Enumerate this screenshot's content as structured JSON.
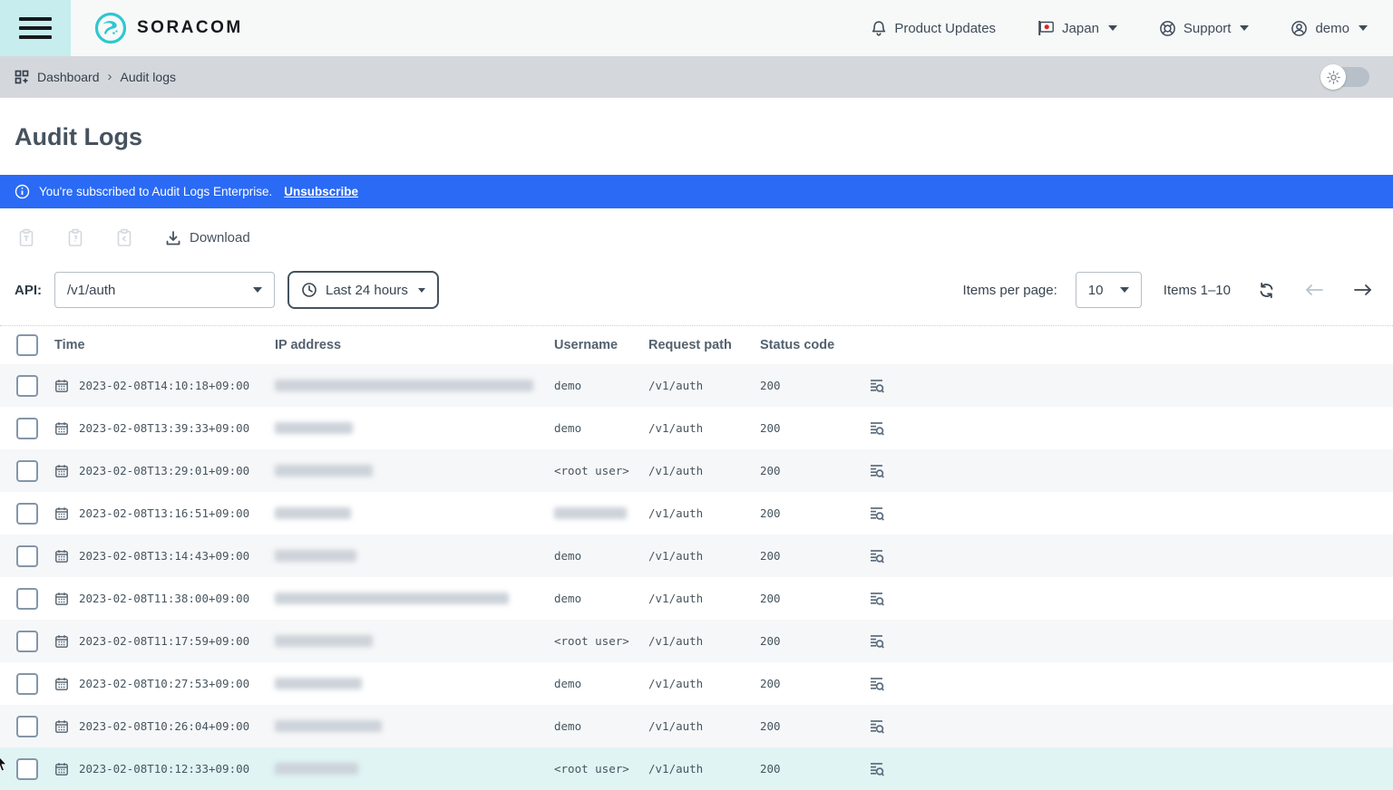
{
  "brand": {
    "name": "SORACOM",
    "accent_color": "#2fc7d0"
  },
  "topbar": {
    "product_updates": "Product Updates",
    "region": "Japan",
    "support": "Support",
    "user": "demo"
  },
  "breadcrumb": {
    "items": [
      "Dashboard",
      "Audit logs"
    ]
  },
  "page": {
    "title": "Audit Logs"
  },
  "banner": {
    "text": "You're subscribed to Audit Logs Enterprise.",
    "link": "Unsubscribe",
    "background_color": "#2a6af5"
  },
  "toolbar": {
    "download_label": "Download"
  },
  "filters": {
    "api_label": "API:",
    "api_value": "/v1/auth",
    "time_range": "Last 24 hours"
  },
  "pagination": {
    "items_per_page_label": "Items per page:",
    "per_page": "10",
    "range": "Items 1–10"
  },
  "table": {
    "columns": [
      "Time",
      "IP address",
      "Username",
      "Request path",
      "Status code"
    ],
    "rows": [
      {
        "time": "2023-02-08T14:10:18+09:00",
        "ip_redacted": true,
        "ip_blur_width": 285,
        "username": "demo",
        "username_redacted": false,
        "request_path": "/v1/auth",
        "status_code": "200",
        "highlighted": false
      },
      {
        "time": "2023-02-08T13:39:33+09:00",
        "ip_redacted": true,
        "ip_blur_width": 86,
        "username": "demo",
        "username_redacted": false,
        "request_path": "/v1/auth",
        "status_code": "200",
        "highlighted": false
      },
      {
        "time": "2023-02-08T13:29:01+09:00",
        "ip_redacted": true,
        "ip_blur_width": 108,
        "username": "<root user>",
        "username_redacted": false,
        "request_path": "/v1/auth",
        "status_code": "200",
        "highlighted": false
      },
      {
        "time": "2023-02-08T13:16:51+09:00",
        "ip_redacted": true,
        "ip_blur_width": 84,
        "username": "",
        "username_redacted": true,
        "username_blur_width": 80,
        "request_path": "/v1/auth",
        "status_code": "200",
        "highlighted": false
      },
      {
        "time": "2023-02-08T13:14:43+09:00",
        "ip_redacted": true,
        "ip_blur_width": 90,
        "username": "demo",
        "username_redacted": false,
        "request_path": "/v1/auth",
        "status_code": "200",
        "highlighted": false
      },
      {
        "time": "2023-02-08T11:38:00+09:00",
        "ip_redacted": true,
        "ip_blur_width": 258,
        "username": "demo",
        "username_redacted": false,
        "request_path": "/v1/auth",
        "status_code": "200",
        "highlighted": false
      },
      {
        "time": "2023-02-08T11:17:59+09:00",
        "ip_redacted": true,
        "ip_blur_width": 108,
        "username": "<root user>",
        "username_redacted": false,
        "request_path": "/v1/auth",
        "status_code": "200",
        "highlighted": false
      },
      {
        "time": "2023-02-08T10:27:53+09:00",
        "ip_redacted": true,
        "ip_blur_width": 96,
        "username": "demo",
        "username_redacted": false,
        "request_path": "/v1/auth",
        "status_code": "200",
        "highlighted": false
      },
      {
        "time": "2023-02-08T10:26:04+09:00",
        "ip_redacted": true,
        "ip_blur_width": 118,
        "username": "demo",
        "username_redacted": false,
        "request_path": "/v1/auth",
        "status_code": "200",
        "highlighted": false
      },
      {
        "time": "2023-02-08T10:12:33+09:00",
        "ip_redacted": true,
        "ip_blur_width": 92,
        "username": "<root user>",
        "username_redacted": false,
        "request_path": "/v1/auth",
        "status_code": "200",
        "highlighted": true
      }
    ]
  },
  "icons": {
    "hamburger-menu-icon": "three horizontal bars",
    "soracom-logo-icon": "teal circle with bird mark",
    "bell-icon": "notification bell outline",
    "japan-flag-icon": "white flag with red circle",
    "lifebuoy-icon": "support ring",
    "user-circle-icon": "person in circle",
    "grid-icon": "dashboard grid of squares",
    "sun-icon": "light theme sun",
    "info-icon": "i in circle",
    "clipboard-icon": "disabled clipboard",
    "download-icon": "arrow into tray",
    "clock-icon": "clock face",
    "refresh-icon": "circular arrows",
    "arrow-left-icon": "previous page arrow",
    "arrow-right-icon": "next page arrow",
    "calendar-icon": "calendar grid",
    "log-search-icon": "log lines with magnifier"
  },
  "colors": {
    "menu_tile": "#c7edee",
    "breadcrumb_bar": "#d4d8dc",
    "row_stripe": "#f6f7f8",
    "row_highlight": "#e0f4f4"
  }
}
